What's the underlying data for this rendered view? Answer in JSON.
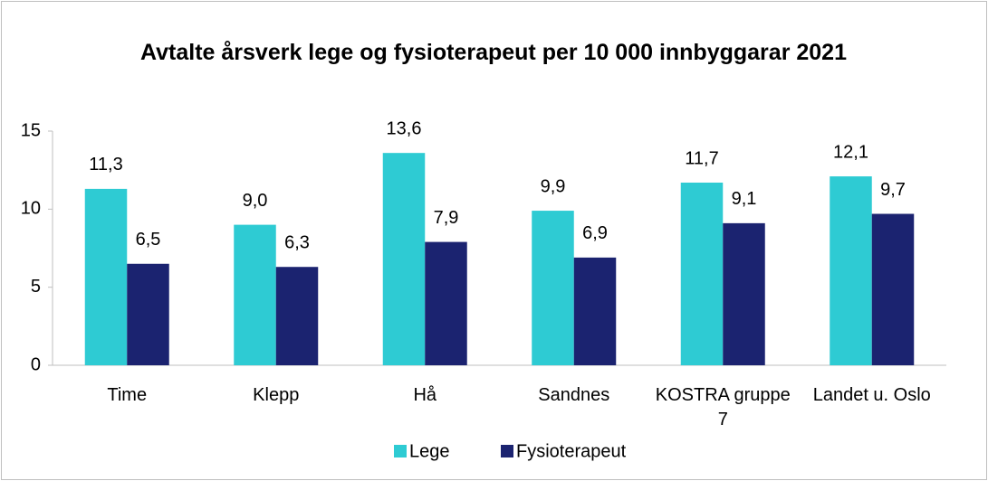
{
  "chart_data": {
    "type": "bar",
    "title": "Avtalte årsverk lege og fysioterapeut per 10 000 innbyggarar 2021",
    "categories": [
      "Time",
      "Klepp",
      "Hå",
      "Sandnes",
      "KOSTRA gruppe 7",
      "Landet u. Oslo"
    ],
    "series": [
      {
        "name": "Lege",
        "color": "#2ecbd3",
        "values": [
          11.3,
          9.0,
          13.6,
          9.9,
          11.7,
          12.1
        ],
        "value_labels": [
          "11,3",
          "9,0",
          "13,6",
          "9,9",
          "11,7",
          "12,1"
        ]
      },
      {
        "name": "Fysioterapeut",
        "color": "#1b2370",
        "values": [
          6.5,
          6.3,
          7.9,
          6.9,
          9.1,
          9.7
        ],
        "value_labels": [
          "6,5",
          "6,3",
          "7,9",
          "6,9",
          "9,1",
          "9,7"
        ]
      }
    ],
    "ylim": [
      0,
      15
    ],
    "yticks": [
      0,
      5,
      10,
      15
    ],
    "grid": false,
    "legend": "bottom"
  }
}
